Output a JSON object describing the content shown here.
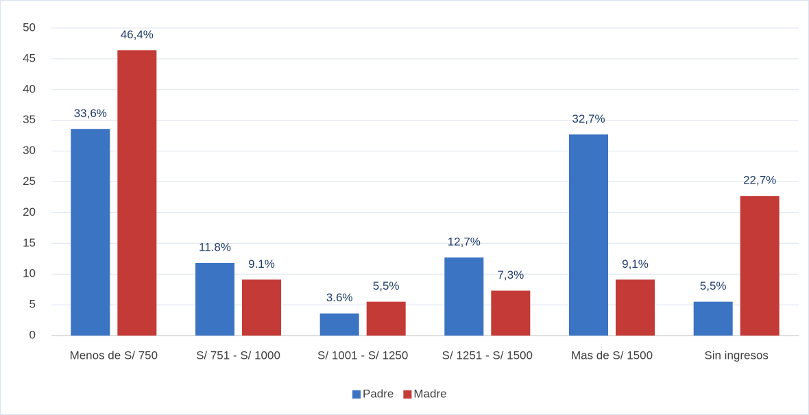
{
  "chart_data": {
    "type": "bar",
    "categories": [
      "Menos de S/ 750",
      "S/ 751 - S/ 1000",
      "S/ 1001 - S/ 1250",
      "S/ 1251 - S/ 1500",
      "Mas de S/ 1500",
      "Sin ingresos"
    ],
    "series": [
      {
        "name": "Padre",
        "color": "#3b74c2",
        "values": [
          33.6,
          11.8,
          3.6,
          12.7,
          32.7,
          5.5
        ],
        "value_labels": [
          "33,6%",
          "11.8%",
          "3.6%",
          "12,7%",
          "32,7%",
          "5,5%"
        ]
      },
      {
        "name": "Madre",
        "color": "#c43a36",
        "values": [
          46.4,
          9.1,
          5.5,
          7.3,
          9.1,
          22.7
        ],
        "value_labels": [
          "46,4%",
          "9.1%",
          "5,5%",
          "7,3%",
          "9,1%",
          "22,7%"
        ]
      }
    ],
    "ylim": [
      0,
      50
    ],
    "yticks": [
      0,
      5,
      10,
      15,
      20,
      25,
      30,
      35,
      40,
      45,
      50
    ],
    "grid": true,
    "legend": "bottom"
  }
}
